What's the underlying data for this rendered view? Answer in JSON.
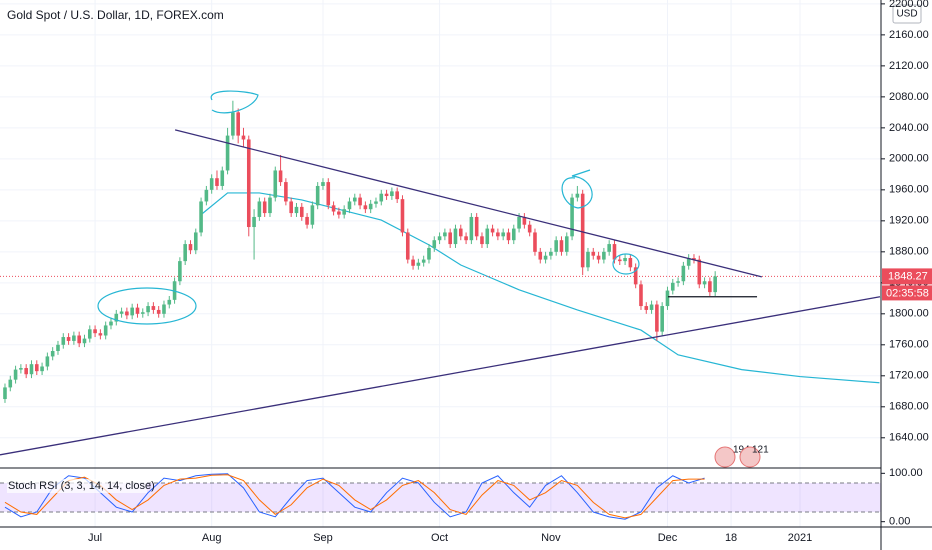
{
  "chart_data": [
    {
      "type": "candlestick",
      "title": "Gold Spot / U.S. Dollar, 1D, FOREX.com",
      "currency": "USD",
      "up_color": "#53b987",
      "down_color": "#eb4d5c",
      "xlim": [
        -0.94,
        165.1
      ],
      "ylim": [
        1601,
        2205
      ],
      "xticks": [
        {
          "value": 17,
          "label": "Jul"
        },
        {
          "value": 39,
          "label": "Aug"
        },
        {
          "value": 60,
          "label": "Sep"
        },
        {
          "value": 82,
          "label": "Oct"
        },
        {
          "value": 103,
          "label": "Nov"
        },
        {
          "value": 125,
          "label": "Dec"
        },
        {
          "value": 137,
          "label": "18"
        },
        {
          "value": 150,
          "label": "2021"
        }
      ],
      "yticks": [
        {
          "value": 1640,
          "label": "1640.00"
        },
        {
          "value": 1680,
          "label": "1680.00"
        },
        {
          "value": 1720,
          "label": "1720.00"
        },
        {
          "value": 1760,
          "label": "1760.00"
        },
        {
          "value": 1800,
          "label": "1800.00"
        },
        {
          "value": 1840,
          "label": "1840.00"
        },
        {
          "value": 1880,
          "label": "1880.00"
        },
        {
          "value": 1920,
          "label": "1920.00"
        },
        {
          "value": 1960,
          "label": "1960.00"
        },
        {
          "value": 2000,
          "label": "2000.00"
        },
        {
          "value": 2040,
          "label": "2040.00"
        },
        {
          "value": 2080,
          "label": "2080.00"
        },
        {
          "value": 2120,
          "label": "2120.00"
        },
        {
          "value": 2160,
          "label": "2160.00"
        },
        {
          "value": 2200,
          "label": "2200.00"
        }
      ],
      "grid": true,
      "open": [
        1690,
        1705,
        1715,
        1728,
        1730,
        1722,
        1735,
        1726,
        1732,
        1745,
        1752,
        1760,
        1770,
        1765,
        1772,
        1762,
        1768,
        1780,
        1775,
        1772,
        1785,
        1790,
        1800,
        1803,
        1798,
        1808,
        1800,
        1802,
        1810,
        1805,
        1800,
        1812,
        1818,
        1842,
        1868,
        1890,
        1882,
        1905,
        1945,
        1960,
        1975,
        1965,
        1985,
        2030,
        2060,
        2030,
        2025,
        1912,
        1925,
        1945,
        1930,
        1950,
        1985,
        1970,
        1945,
        1930,
        1938,
        1925,
        1915,
        1940,
        1965,
        1970,
        1940,
        1932,
        1928,
        1935,
        1945,
        1950,
        1940,
        1935,
        1942,
        1945,
        1955,
        1952,
        1958,
        1948,
        1905,
        1870,
        1862,
        1866,
        1870,
        1885,
        1895,
        1900,
        1905,
        1890,
        1910,
        1900,
        1895,
        1925,
        1900,
        1890,
        1910,
        1905,
        1900,
        1905,
        1895,
        1910,
        1925,
        1915,
        1905,
        1880,
        1870,
        1875,
        1880,
        1895,
        1880,
        1900,
        1950,
        1955,
        1860,
        1880,
        1875,
        1870,
        1880,
        1890,
        1870,
        1868,
        1872,
        1860,
        1838,
        1810,
        1805,
        1812,
        1777,
        1810,
        1830,
        1840,
        1842,
        1862,
        1872,
        1870,
        1838,
        1842,
        1828
      ],
      "high": [
        1710,
        1720,
        1733,
        1735,
        1735,
        1740,
        1740,
        1737,
        1750,
        1757,
        1765,
        1775,
        1775,
        1777,
        1777,
        1773,
        1785,
        1785,
        1780,
        1790,
        1795,
        1805,
        1808,
        1808,
        1813,
        1813,
        1807,
        1815,
        1815,
        1810,
        1817,
        1823,
        1847,
        1873,
        1895,
        1895,
        1910,
        1950,
        1965,
        1980,
        1985,
        1990,
        2040,
        2075,
        2065,
        2040,
        2030,
        1935,
        1950,
        1950,
        1955,
        1990,
        2005,
        1975,
        1950,
        1943,
        1943,
        1930,
        1945,
        1970,
        1975,
        1975,
        1945,
        1937,
        1940,
        1950,
        1955,
        1955,
        1945,
        1947,
        1950,
        1960,
        1960,
        1963,
        1963,
        1953,
        1910,
        1875,
        1871,
        1875,
        1890,
        1900,
        1905,
        1910,
        1910,
        1915,
        1915,
        1905,
        1930,
        1930,
        1905,
        1915,
        1915,
        1910,
        1910,
        1910,
        1915,
        1930,
        1930,
        1920,
        1910,
        1885,
        1880,
        1885,
        1900,
        1900,
        1905,
        1955,
        1965,
        1960,
        1885,
        1885,
        1880,
        1885,
        1895,
        1895,
        1875,
        1877,
        1877,
        1865,
        1843,
        1815,
        1817,
        1817,
        1815,
        1835,
        1845,
        1847,
        1867,
        1877,
        1877,
        1875,
        1847,
        1847,
        1855
      ],
      "low": [
        1685,
        1700,
        1710,
        1723,
        1717,
        1717,
        1721,
        1721,
        1727,
        1740,
        1747,
        1755,
        1760,
        1760,
        1757,
        1757,
        1763,
        1770,
        1767,
        1767,
        1780,
        1785,
        1795,
        1793,
        1793,
        1795,
        1795,
        1797,
        1800,
        1795,
        1795,
        1807,
        1813,
        1837,
        1863,
        1877,
        1877,
        1900,
        1940,
        1955,
        1960,
        1960,
        1980,
        2025,
        2020,
        2015,
        1900,
        1870,
        1920,
        1925,
        1925,
        1945,
        1965,
        1940,
        1925,
        1925,
        1920,
        1910,
        1910,
        1935,
        1960,
        1935,
        1927,
        1923,
        1923,
        1930,
        1940,
        1935,
        1930,
        1930,
        1937,
        1940,
        1947,
        1947,
        1943,
        1900,
        1865,
        1857,
        1857,
        1861,
        1865,
        1880,
        1890,
        1895,
        1885,
        1885,
        1895,
        1890,
        1890,
        1895,
        1885,
        1885,
        1900,
        1895,
        1895,
        1890,
        1890,
        1905,
        1910,
        1900,
        1875,
        1865,
        1865,
        1870,
        1875,
        1875,
        1875,
        1895,
        1945,
        1850,
        1855,
        1870,
        1865,
        1865,
        1875,
        1865,
        1863,
        1863,
        1855,
        1833,
        1805,
        1800,
        1800,
        1765,
        1772,
        1805,
        1825,
        1835,
        1837,
        1857,
        1865,
        1833,
        1833,
        1823,
        1823
      ],
      "close": [
        1705,
        1715,
        1728,
        1730,
        1722,
        1735,
        1726,
        1732,
        1745,
        1752,
        1760,
        1770,
        1765,
        1772,
        1762,
        1768,
        1780,
        1775,
        1772,
        1785,
        1790,
        1800,
        1803,
        1798,
        1808,
        1800,
        1802,
        1810,
        1805,
        1800,
        1812,
        1818,
        1842,
        1868,
        1890,
        1882,
        1905,
        1945,
        1960,
        1975,
        1965,
        1985,
        2030,
        2060,
        2030,
        2025,
        1912,
        1925,
        1945,
        1930,
        1950,
        1985,
        1970,
        1945,
        1930,
        1938,
        1925,
        1915,
        1940,
        1965,
        1970,
        1940,
        1932,
        1928,
        1935,
        1945,
        1950,
        1940,
        1935,
        1942,
        1945,
        1955,
        1952,
        1958,
        1948,
        1905,
        1870,
        1862,
        1866,
        1870,
        1885,
        1895,
        1900,
        1905,
        1890,
        1910,
        1900,
        1895,
        1925,
        1900,
        1890,
        1910,
        1905,
        1900,
        1905,
        1895,
        1910,
        1925,
        1915,
        1905,
        1880,
        1870,
        1875,
        1880,
        1895,
        1880,
        1900,
        1950,
        1955,
        1860,
        1880,
        1875,
        1870,
        1880,
        1890,
        1870,
        1868,
        1872,
        1860,
        1838,
        1810,
        1805,
        1812,
        1777,
        1810,
        1830,
        1840,
        1842,
        1862,
        1872,
        1870,
        1838,
        1842,
        1828,
        1848.27
      ],
      "moving_average": {
        "color": "#26b6d4",
        "x": [
          37,
          42,
          48,
          56,
          71,
          80,
          86,
          97,
          108,
          120,
          127,
          139,
          150,
          165
        ],
        "values": [
          1928,
          1956,
          1956,
          1947,
          1921,
          1889,
          1863,
          1831,
          1805,
          1779,
          1747,
          1728,
          1719,
          1711
        ]
      },
      "trendlines": [
        {
          "color": "#3a2f7a",
          "x": [
            32.1,
            142.8
          ],
          "values": [
            2037.4,
            1847.7
          ]
        },
        {
          "color": "#3a2f7a",
          "x": [
            -0.94,
            165.1
          ],
          "values": [
            1618,
            1822
          ]
        },
        {
          "color": "#131722",
          "x": [
            125.1,
            141.9
          ],
          "values": [
            1822,
            1822
          ]
        }
      ],
      "last_price": 1848.27,
      "countdown": "02:35:58",
      "badges": [
        "194",
        "121"
      ]
    },
    {
      "type": "line",
      "title": "Stoch RSI (3, 3, 14, 14, close)",
      "ylim": [
        -11,
        111
      ],
      "yticks": [
        {
          "value": 0,
          "label": "0.00"
        },
        {
          "value": 100,
          "label": "100.00"
        }
      ],
      "band": [
        20,
        80
      ],
      "band_color": "#954cff",
      "x": [
        0,
        3,
        6,
        9,
        12,
        15,
        18,
        21,
        24,
        27,
        30,
        33,
        36,
        39,
        42,
        45,
        48,
        51,
        54,
        57,
        60,
        63,
        66,
        69,
        72,
        75,
        78,
        81,
        84,
        87,
        90,
        93,
        96,
        99,
        102,
        105,
        108,
        111,
        114,
        117,
        120,
        123,
        126,
        129,
        132
      ],
      "series": [
        {
          "color": "#2962ff",
          "values": [
            30,
            10,
            20,
            70,
            95,
            90,
            60,
            30,
            20,
            60,
            90,
            85,
            95,
            98,
            99,
            70,
            20,
            10,
            50,
            85,
            90,
            60,
            30,
            20,
            60,
            90,
            80,
            40,
            10,
            20,
            80,
            95,
            60,
            30,
            75,
            95,
            60,
            20,
            10,
            5,
            20,
            70,
            95,
            80,
            90
          ]
        },
        {
          "color": "#ff6d00",
          "values": [
            40,
            20,
            15,
            50,
            85,
            92,
            75,
            45,
            25,
            45,
            75,
            88,
            90,
            96,
            97,
            85,
            45,
            15,
            35,
            70,
            88,
            75,
            45,
            25,
            45,
            75,
            85,
            60,
            25,
            15,
            55,
            85,
            75,
            45,
            60,
            85,
            75,
            40,
            15,
            8,
            15,
            50,
            85,
            88,
            88
          ]
        }
      ]
    }
  ]
}
